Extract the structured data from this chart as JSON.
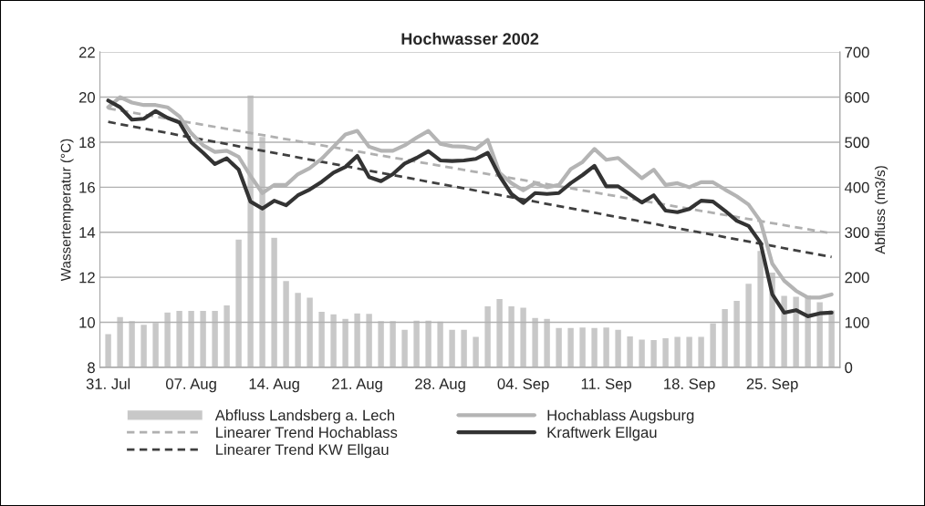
{
  "chart_data": {
    "type": "line",
    "title": "Hochwasser 2002",
    "ylabel": "Wassertemperatur (°C)",
    "y2label": "Abfluss (m3/s)",
    "categories": [
      "31. Jul",
      null,
      null,
      null,
      null,
      null,
      null,
      "07. Aug",
      null,
      null,
      null,
      null,
      null,
      null,
      "14. Aug",
      null,
      null,
      null,
      null,
      null,
      null,
      "21. Aug",
      null,
      null,
      null,
      null,
      null,
      null,
      "28. Aug",
      null,
      null,
      null,
      null,
      null,
      null,
      "04. Sep",
      null,
      null,
      null,
      null,
      null,
      null,
      "11. Sep",
      null,
      null,
      null,
      null,
      null,
      null,
      "18. Sep",
      null,
      null,
      null,
      null,
      null,
      null,
      "25. Sep",
      null,
      null,
      null,
      null,
      null
    ],
    "ylim": [
      8,
      22
    ],
    "yticks": [
      8,
      10,
      12,
      14,
      16,
      18,
      20,
      22
    ],
    "y2lim": [
      0,
      700
    ],
    "y2ticks": [
      0,
      100,
      200,
      300,
      400,
      500,
      600,
      700
    ],
    "grid": "y",
    "legend": "bottom",
    "series": [
      {
        "name": "Abfluss Landsberg a. Lech",
        "type": "bar",
        "axis": "y2",
        "color": "#c8c8c8",
        "values": [
          75,
          113,
          104,
          96,
          100,
          123,
          127,
          127,
          127,
          127,
          139,
          285,
          605,
          513,
          289,
          193,
          167,
          156,
          125,
          119,
          109,
          121,
          120,
          104,
          104,
          85,
          105,
          105,
          103,
          85,
          85,
          69,
          137,
          153,
          137,
          134,
          111,
          109,
          89,
          89,
          90,
          89,
          90,
          85,
          70,
          63,
          62,
          66,
          69,
          69,
          69,
          99,
          131,
          149,
          187,
          260,
          212,
          160,
          158,
          161,
          146,
          128
        ]
      },
      {
        "name": "Linearer Trend Hochablass",
        "line_style": "dashed",
        "color": "#b0b0b0",
        "values": [
          19.5,
          null,
          null,
          null,
          null,
          null,
          null,
          null,
          null,
          null,
          null,
          null,
          null,
          null,
          null,
          null,
          null,
          null,
          null,
          null,
          null,
          null,
          null,
          null,
          null,
          null,
          null,
          null,
          null,
          null,
          null,
          null,
          null,
          null,
          null,
          null,
          null,
          null,
          null,
          null,
          null,
          null,
          null,
          null,
          null,
          null,
          null,
          null,
          null,
          null,
          null,
          null,
          null,
          null,
          null,
          null,
          null,
          null,
          null,
          null,
          null,
          13.95
        ]
      },
      {
        "name": "Linearer Trend KW Ellgau",
        "line_style": "dashed",
        "color": "#404040",
        "values": [
          18.9,
          null,
          null,
          null,
          null,
          null,
          null,
          null,
          null,
          null,
          null,
          null,
          null,
          null,
          null,
          null,
          null,
          null,
          null,
          null,
          null,
          null,
          null,
          null,
          null,
          null,
          null,
          null,
          null,
          null,
          null,
          null,
          null,
          null,
          null,
          null,
          null,
          null,
          null,
          null,
          null,
          null,
          null,
          null,
          null,
          null,
          null,
          null,
          null,
          null,
          null,
          null,
          null,
          null,
          null,
          null,
          null,
          null,
          null,
          null,
          null,
          12.9
        ]
      },
      {
        "name": "Hochablass Augsburg",
        "line_style": "solid",
        "color": "#b4b4b4",
        "values": [
          19.55,
          20.0,
          19.76,
          19.65,
          19.65,
          19.55,
          19.15,
          18.4,
          17.86,
          17.57,
          17.62,
          17.35,
          16.5,
          15.74,
          16.1,
          16.1,
          16.58,
          16.85,
          17.26,
          17.8,
          18.34,
          18.5,
          17.8,
          17.62,
          17.62,
          17.86,
          18.2,
          18.5,
          17.93,
          17.82,
          17.8,
          17.7,
          18.1,
          16.64,
          16.18,
          15.86,
          16.18,
          16.0,
          16.1,
          16.8,
          17.12,
          17.7,
          17.22,
          17.3,
          16.85,
          16.4,
          16.78,
          16.1,
          16.18,
          16.0,
          16.22,
          16.22,
          15.9,
          15.6,
          15.23,
          14.49,
          12.6,
          11.85,
          11.4,
          11.1,
          11.1,
          11.24
        ]
      },
      {
        "name": "Kraftwerk Ellgau",
        "line_style": "solid",
        "color": "#333333",
        "values": [
          19.85,
          19.55,
          19.0,
          19.04,
          19.38,
          19.08,
          18.88,
          18.0,
          17.53,
          17.03,
          17.28,
          16.78,
          15.36,
          15.05,
          15.4,
          15.2,
          15.64,
          15.9,
          16.24,
          16.65,
          16.9,
          17.39,
          16.45,
          16.27,
          16.58,
          17.05,
          17.3,
          17.6,
          17.19,
          17.16,
          17.19,
          17.26,
          17.53,
          16.5,
          15.7,
          15.3,
          15.74,
          15.7,
          15.74,
          16.18,
          16.54,
          16.95,
          16.04,
          16.04,
          15.68,
          15.32,
          15.64,
          14.96,
          14.89,
          15.03,
          15.4,
          15.36,
          14.96,
          14.51,
          14.28,
          13.54,
          11.24,
          10.43,
          10.54,
          10.27,
          10.4,
          10.43
        ]
      }
    ]
  }
}
